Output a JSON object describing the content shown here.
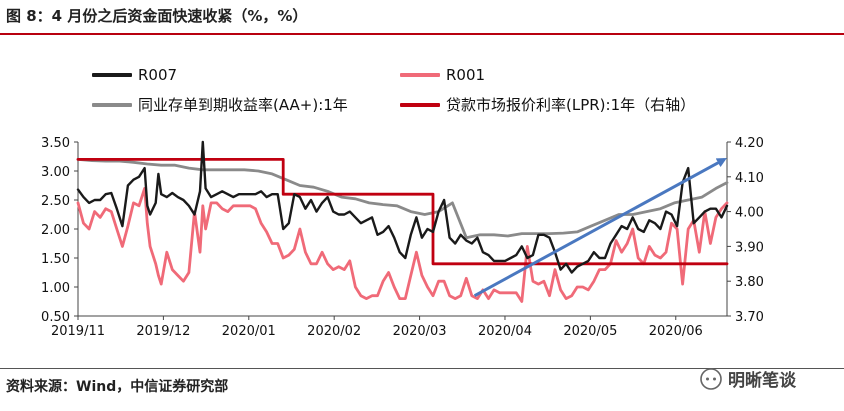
{
  "header": {
    "title": "图 8：4 月份之后资金面快速收紧（%，%）"
  },
  "footer": {
    "source": "资料来源：Wind，中信证券研究部",
    "watermark": "明晰笔谈"
  },
  "colors": {
    "r007": "#1a1a1a",
    "r001": "#f06a78",
    "ncd": "#8a8a8a",
    "lpr": "#c00010",
    "arrow": "#4a78c0",
    "rule": "#b8000f"
  },
  "chart_data": {
    "type": "line",
    "legend": [
      {
        "name": "R007",
        "color": "#1a1a1a"
      },
      {
        "name": "R001",
        "color": "#f06a78"
      },
      {
        "name": "同业存单到期收益率(AA+):1年",
        "color": "#8a8a8a"
      },
      {
        "name": "贷款市场报价利率(LPR):1年（右轴）",
        "color": "#c00010"
      }
    ],
    "x_tick_labels": [
      "2019/11",
      "2019/12",
      "2020/01",
      "2020/02",
      "2020/03",
      "2020/04",
      "2020/05",
      "2020/06"
    ],
    "left_axis": {
      "min": 0.5,
      "max": 3.5,
      "step": 0.5,
      "labels": [
        "0.50",
        "1.00",
        "1.50",
        "2.00",
        "2.50",
        "3.00",
        "3.50"
      ]
    },
    "right_axis": {
      "min": 3.7,
      "max": 4.2,
      "step": 0.1,
      "labels": [
        "3.70",
        "3.80",
        "3.90",
        "4.00",
        "4.10",
        "4.20"
      ]
    },
    "series": [
      {
        "name": "R007",
        "axis": "left",
        "x": [
          0,
          2,
          4,
          6,
          8,
          10,
          12,
          14,
          16,
          18,
          20,
          22,
          24,
          25,
          26,
          28,
          29,
          30,
          32,
          34,
          36,
          38,
          40,
          42,
          44,
          45,
          46,
          48,
          50,
          52,
          54,
          56,
          58,
          60,
          62,
          64,
          66,
          68,
          70,
          72,
          74,
          76,
          78,
          80,
          82,
          84,
          86,
          88,
          90,
          92,
          94,
          96,
          98,
          100,
          102,
          104,
          106,
          108,
          110,
          112,
          114,
          116,
          118,
          120,
          122,
          124,
          126,
          128,
          130,
          132,
          134,
          136,
          138,
          140,
          142,
          144,
          146,
          148,
          150,
          152,
          154,
          156,
          158,
          160,
          162,
          164,
          166,
          168,
          170,
          172,
          174,
          176,
          178,
          180,
          182,
          184,
          186,
          188,
          190,
          192,
          194,
          196,
          198,
          200,
          202,
          204,
          206,
          208,
          210,
          212,
          214,
          216,
          218,
          220,
          222,
          224,
          226,
          228,
          230,
          232,
          234
        ],
        "values": [
          2.68,
          2.55,
          2.45,
          2.5,
          2.5,
          2.6,
          2.62,
          2.35,
          2.05,
          2.75,
          2.85,
          2.9,
          3.05,
          2.4,
          2.25,
          2.45,
          2.95,
          2.6,
          2.55,
          2.62,
          2.55,
          2.5,
          2.4,
          2.25,
          2.65,
          3.5,
          2.7,
          2.55,
          2.6,
          2.65,
          2.6,
          2.55,
          2.6,
          2.6,
          2.6,
          2.6,
          2.65,
          2.55,
          2.6,
          2.6,
          2.0,
          2.1,
          2.6,
          2.55,
          2.35,
          2.5,
          2.3,
          2.45,
          2.55,
          2.3,
          2.25,
          2.25,
          2.3,
          2.2,
          2.1,
          2.15,
          2.2,
          1.9,
          1.95,
          2.05,
          1.85,
          1.6,
          1.5,
          1.9,
          2.2,
          1.85,
          2.0,
          1.95,
          2.3,
          2.5,
          1.85,
          1.75,
          1.9,
          1.8,
          1.75,
          1.85,
          1.6,
          1.55,
          1.45,
          1.45,
          1.45,
          1.5,
          1.55,
          1.7,
          1.5,
          1.55,
          1.9,
          1.9,
          1.85,
          1.6,
          1.3,
          1.4,
          1.25,
          1.35,
          1.4,
          1.45,
          1.6,
          1.5,
          1.5,
          1.75,
          1.9,
          2.05,
          2.0,
          2.2,
          2.0,
          1.95,
          2.15,
          2.1,
          2.0,
          2.3,
          2.25,
          2.05,
          2.8,
          3.05,
          2.1,
          2.2,
          2.3,
          2.35,
          2.35,
          2.2,
          2.4
        ]
      },
      {
        "name": "R001",
        "axis": "left",
        "x": [
          0,
          2,
          4,
          6,
          8,
          10,
          12,
          14,
          16,
          18,
          20,
          22,
          24,
          25,
          26,
          28,
          29,
          30,
          32,
          34,
          36,
          38,
          40,
          42,
          44,
          45,
          46,
          48,
          50,
          52,
          54,
          56,
          58,
          60,
          62,
          64,
          66,
          68,
          70,
          72,
          74,
          76,
          78,
          80,
          82,
          84,
          86,
          88,
          90,
          92,
          94,
          96,
          98,
          100,
          102,
          104,
          106,
          108,
          110,
          112,
          114,
          116,
          118,
          120,
          122,
          124,
          126,
          128,
          130,
          132,
          134,
          136,
          138,
          140,
          142,
          144,
          146,
          148,
          150,
          152,
          154,
          156,
          158,
          160,
          162,
          164,
          166,
          168,
          170,
          172,
          174,
          176,
          178,
          180,
          182,
          184,
          186,
          188,
          190,
          192,
          194,
          196,
          198,
          200,
          202,
          204,
          206,
          208,
          210,
          212,
          214,
          216,
          218,
          220,
          222,
          224,
          226,
          228,
          230,
          232,
          234
        ],
        "values": [
          2.45,
          2.1,
          2.0,
          2.3,
          2.2,
          2.35,
          2.3,
          2.0,
          1.7,
          2.05,
          2.45,
          2.4,
          2.7,
          2.1,
          1.7,
          1.4,
          1.2,
          1.05,
          1.6,
          1.3,
          1.2,
          1.1,
          1.25,
          2.3,
          1.6,
          2.4,
          2.0,
          2.45,
          2.45,
          2.35,
          2.3,
          2.4,
          2.4,
          2.4,
          2.4,
          2.35,
          2.1,
          1.95,
          1.75,
          1.75,
          1.5,
          1.55,
          1.65,
          2.0,
          1.6,
          1.4,
          1.4,
          1.6,
          1.4,
          1.3,
          1.35,
          1.3,
          1.45,
          1.0,
          0.85,
          0.8,
          0.85,
          0.85,
          1.1,
          1.25,
          1.0,
          0.8,
          0.8,
          1.2,
          1.6,
          1.2,
          1.0,
          0.85,
          1.1,
          1.1,
          0.85,
          0.8,
          0.85,
          1.15,
          0.85,
          0.8,
          0.95,
          0.8,
          0.95,
          0.9,
          0.9,
          0.9,
          0.9,
          0.75,
          1.7,
          1.1,
          1.05,
          1.1,
          0.85,
          1.3,
          0.95,
          0.8,
          0.85,
          1.0,
          1.0,
          0.95,
          1.1,
          1.3,
          1.3,
          1.4,
          1.8,
          1.6,
          1.75,
          2.0,
          1.5,
          1.4,
          1.7,
          1.55,
          1.5,
          1.6,
          2.1,
          2.0,
          1.05,
          2.0,
          2.15,
          1.6,
          2.3,
          1.75,
          2.2,
          2.35,
          2.45
        ]
      },
      {
        "name": "同业存单到期收益率(AA+):1年",
        "axis": "left",
        "x": [
          0,
          5,
          10,
          15,
          20,
          25,
          30,
          35,
          40,
          45,
          50,
          55,
          60,
          65,
          70,
          75,
          80,
          85,
          90,
          95,
          100,
          105,
          110,
          115,
          120,
          125,
          130,
          135,
          140,
          145,
          150,
          155,
          160,
          165,
          170,
          175,
          180,
          185,
          190,
          195,
          200,
          205,
          210,
          215,
          220,
          225,
          230,
          234
        ],
        "values": [
          3.2,
          3.18,
          3.17,
          3.17,
          3.15,
          3.12,
          3.1,
          3.1,
          3.05,
          3.02,
          3.02,
          3.02,
          3.02,
          3.0,
          2.95,
          2.85,
          2.75,
          2.72,
          2.65,
          2.55,
          2.52,
          2.45,
          2.42,
          2.4,
          2.3,
          2.25,
          2.3,
          2.45,
          1.85,
          1.9,
          1.9,
          1.88,
          1.92,
          1.92,
          1.92,
          1.93,
          1.95,
          2.05,
          2.15,
          2.25,
          2.25,
          2.3,
          2.35,
          2.45,
          2.5,
          2.55,
          2.7,
          2.8
        ]
      },
      {
        "name": "贷款市场报价利率(LPR):1年（右轴）",
        "axis": "right",
        "x": [
          0,
          74,
          74,
          128,
          128,
          129,
          129,
          234
        ],
        "values": [
          4.15,
          4.15,
          4.05,
          4.05,
          3.85,
          3.85,
          3.85,
          3.85
        ]
      }
    ],
    "annotation": {
      "type": "arrow",
      "description": "trend arrow",
      "from": [
        143,
        0.85
      ],
      "to": [
        233,
        3.2
      ]
    }
  }
}
